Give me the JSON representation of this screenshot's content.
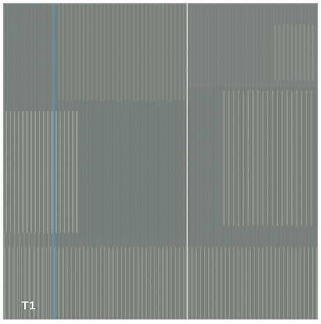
{
  "tile": {
    "label": "T1",
    "base_color": "#7d8580",
    "accent_colors": {
      "pinstripe_light": "#c7c4ad",
      "pinstripe_dark": "#6c7370",
      "blue_stripe": "#5c9bbf",
      "white_stripe": "#dfe3dd"
    }
  }
}
